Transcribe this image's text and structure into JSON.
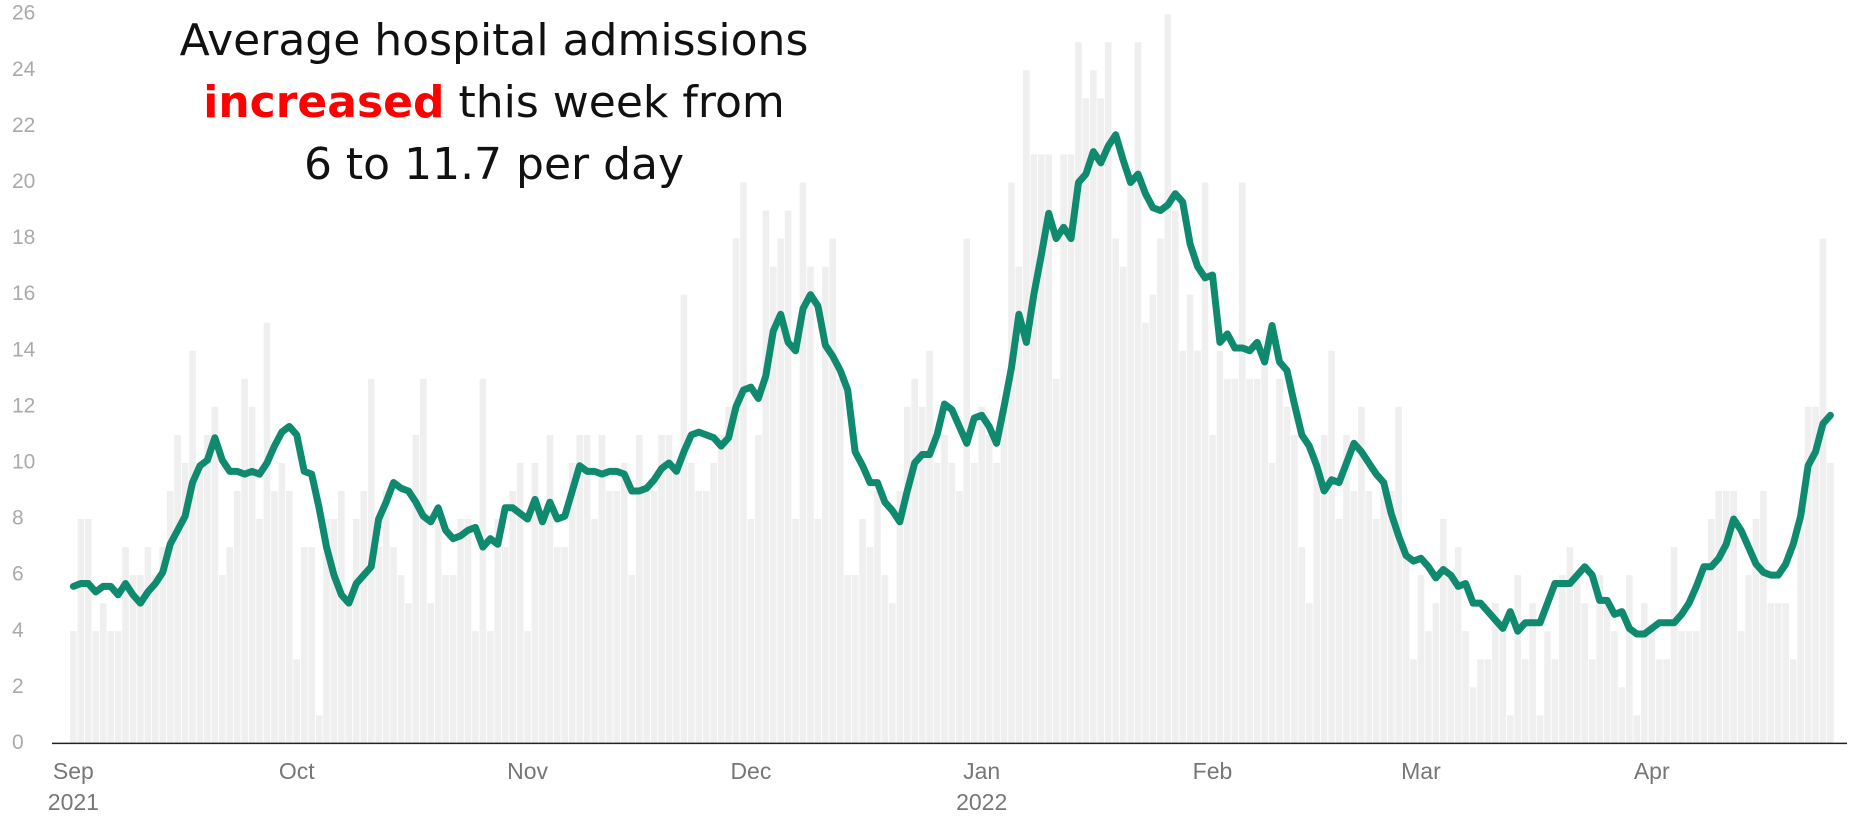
{
  "chart_data": {
    "type": "combo",
    "title": [
      "Average hospital admissions",
      "increased",
      "this week from",
      "6 to 11.7 per day"
    ],
    "title_highlight_color": "#ff0000",
    "ylim": [
      0,
      26
    ],
    "yticks": [
      0,
      2,
      4,
      6,
      8,
      10,
      12,
      14,
      16,
      18,
      20,
      22,
      24,
      26
    ],
    "grid": false,
    "categories": [
      "Sep\n2021",
      null,
      null,
      null,
      null,
      null,
      null,
      null,
      null,
      null,
      null,
      null,
      null,
      null,
      null,
      null,
      null,
      null,
      null,
      null,
      null,
      null,
      null,
      null,
      null,
      null,
      null,
      null,
      null,
      null,
      "Oct",
      null,
      null,
      null,
      null,
      null,
      null,
      null,
      null,
      null,
      null,
      null,
      null,
      null,
      null,
      null,
      null,
      null,
      null,
      null,
      null,
      null,
      null,
      null,
      null,
      null,
      null,
      null,
      null,
      null,
      null,
      "Nov",
      null,
      null,
      null,
      null,
      null,
      null,
      null,
      null,
      null,
      null,
      null,
      null,
      null,
      null,
      null,
      null,
      null,
      null,
      null,
      null,
      null,
      null,
      null,
      null,
      null,
      null,
      null,
      null,
      null,
      "Dec",
      null,
      null,
      null,
      null,
      null,
      null,
      null,
      null,
      null,
      null,
      null,
      null,
      null,
      null,
      null,
      null,
      null,
      null,
      null,
      null,
      null,
      null,
      null,
      null,
      null,
      null,
      null,
      null,
      null,
      null,
      "Jan\n2022",
      null,
      null,
      null,
      null,
      null,
      null,
      null,
      null,
      null,
      null,
      null,
      null,
      null,
      null,
      null,
      null,
      null,
      null,
      null,
      null,
      null,
      null,
      null,
      null,
      null,
      null,
      null,
      null,
      null,
      null,
      "Feb",
      null,
      null,
      null,
      null,
      null,
      null,
      null,
      null,
      null,
      null,
      null,
      null,
      null,
      null,
      null,
      null,
      null,
      null,
      null,
      null,
      null,
      null,
      null,
      null,
      null,
      null,
      null,
      "Mar",
      null,
      null,
      null,
      null,
      null,
      null,
      null,
      null,
      null,
      null,
      null,
      null,
      null,
      null,
      null,
      null,
      null,
      null,
      null,
      null,
      null,
      null,
      null,
      null,
      null,
      null,
      null,
      null,
      null,
      null,
      "Apr",
      null,
      null,
      null,
      null,
      null,
      null,
      null,
      null,
      null,
      null,
      null,
      null,
      null,
      null,
      null,
      null,
      null,
      null,
      null,
      null,
      null,
      null,
      null,
      null
    ],
    "bars": {
      "color": "#efefef",
      "values": [
        4,
        8,
        8,
        4,
        5,
        4,
        4,
        7,
        6,
        6,
        7,
        6,
        7,
        9,
        11,
        10,
        14,
        10,
        11,
        12,
        6,
        7,
        9,
        13,
        12,
        8,
        15,
        9,
        10,
        9,
        3,
        7,
        7,
        1,
        8,
        8,
        9,
        5,
        8,
        9,
        13,
        7,
        9,
        7,
        6,
        5,
        11,
        13,
        5,
        8,
        6,
        6,
        8,
        8,
        4,
        13,
        4,
        8,
        7,
        9,
        10,
        4,
        10,
        8,
        11,
        7,
        7,
        10,
        11,
        11,
        8,
        11,
        9,
        9,
        10,
        6,
        11,
        9,
        9,
        11,
        11,
        10,
        16,
        10,
        9,
        9,
        10,
        11,
        12,
        18,
        20,
        8,
        11,
        19,
        17,
        18,
        19,
        8,
        20,
        17,
        8,
        17,
        18,
        13,
        6,
        6,
        8,
        7,
        9,
        6,
        5,
        9,
        12,
        13,
        12,
        14,
        10,
        11,
        10,
        9,
        18,
        10,
        12,
        11,
        10,
        12,
        20,
        17,
        24,
        21,
        21,
        21,
        13,
        21,
        21,
        25,
        23,
        24,
        23,
        25,
        18,
        17,
        20,
        25,
        15,
        16,
        18,
        26,
        19,
        14,
        16,
        14,
        20,
        11,
        14,
        13,
        13,
        20,
        13,
        13,
        14,
        10,
        13,
        12,
        11,
        7,
        5,
        10,
        11,
        14,
        8,
        11,
        9,
        12,
        9,
        8,
        9,
        9,
        12,
        7,
        3,
        6,
        4,
        5,
        8,
        6,
        7,
        4,
        2,
        3,
        3,
        5,
        4,
        1,
        6,
        3,
        5,
        1,
        4,
        3,
        6,
        7,
        6,
        5,
        3,
        6,
        5,
        4,
        2,
        6,
        1,
        5,
        4,
        3,
        3,
        7,
        4,
        4,
        4,
        6,
        8,
        9,
        9,
        9,
        4,
        6,
        8,
        9,
        5,
        5,
        5,
        3,
        8,
        12,
        12,
        18,
        10
      ]
    },
    "line": {
      "color": "#0f8a6e",
      "values": [
        5.6,
        5.7,
        5.7,
        5.4,
        5.6,
        5.6,
        5.3,
        5.7,
        5.3,
        5.0,
        5.4,
        5.7,
        6.1,
        7.1,
        7.6,
        8.1,
        9.3,
        9.9,
        10.1,
        10.9,
        10.1,
        9.7,
        9.7,
        9.6,
        9.7,
        9.6,
        10.0,
        10.6,
        11.1,
        11.3,
        11.0,
        9.7,
        9.6,
        8.4,
        7.0,
        6.0,
        5.3,
        5.0,
        5.7,
        6.0,
        6.3,
        8.0,
        8.6,
        9.3,
        9.1,
        9.0,
        8.6,
        8.1,
        7.9,
        8.4,
        7.6,
        7.3,
        7.4,
        7.6,
        7.7,
        7.0,
        7.3,
        7.1,
        8.4,
        8.4,
        8.2,
        8.0,
        8.7,
        7.9,
        8.6,
        8.0,
        8.1,
        9.0,
        9.9,
        9.7,
        9.7,
        9.6,
        9.7,
        9.7,
        9.6,
        9.0,
        9.0,
        9.1,
        9.4,
        9.8,
        10.0,
        9.7,
        10.4,
        11.0,
        11.1,
        11.0,
        10.9,
        10.6,
        10.9,
        12.0,
        12.6,
        12.7,
        12.3,
        13.1,
        14.7,
        15.3,
        14.3,
        14.0,
        15.5,
        16.0,
        15.6,
        14.2,
        13.8,
        13.3,
        12.6,
        10.4,
        9.9,
        9.3,
        9.3,
        8.6,
        8.3,
        7.9,
        9.0,
        10.0,
        10.3,
        10.3,
        11.0,
        12.1,
        11.9,
        11.3,
        10.7,
        11.6,
        11.7,
        11.3,
        10.7,
        12.0,
        13.4,
        15.3,
        14.3,
        16.0,
        17.4,
        18.9,
        18.0,
        18.4,
        18.0,
        20.0,
        20.3,
        21.1,
        20.7,
        21.3,
        21.7,
        20.8,
        20.0,
        20.3,
        19.6,
        19.1,
        19.0,
        19.2,
        19.6,
        19.3,
        17.8,
        17.0,
        16.6,
        16.7,
        14.3,
        14.6,
        14.1,
        14.1,
        14.0,
        14.3,
        13.6,
        14.9,
        13.6,
        13.3,
        12.1,
        11.0,
        10.6,
        9.9,
        9.0,
        9.4,
        9.3,
        10.0,
        10.7,
        10.4,
        10.0,
        9.6,
        9.3,
        8.2,
        7.4,
        6.7,
        6.5,
        6.6,
        6.3,
        5.9,
        6.2,
        6.0,
        5.6,
        5.7,
        5.0,
        5.0,
        4.7,
        4.4,
        4.1,
        4.7,
        4.0,
        4.3,
        4.3,
        4.3,
        5.0,
        5.7,
        5.7,
        5.7,
        6.0,
        6.3,
        6.0,
        5.1,
        5.1,
        4.6,
        4.7,
        4.1,
        3.9,
        3.9,
        4.1,
        4.3,
        4.3,
        4.3,
        4.6,
        5.0,
        5.6,
        6.3,
        6.3,
        6.6,
        7.1,
        8.0,
        7.6,
        7.0,
        6.4,
        6.1,
        6.0,
        6.0,
        6.4,
        7.1,
        8.1,
        9.9,
        10.4,
        11.4,
        11.7
      ]
    }
  }
}
